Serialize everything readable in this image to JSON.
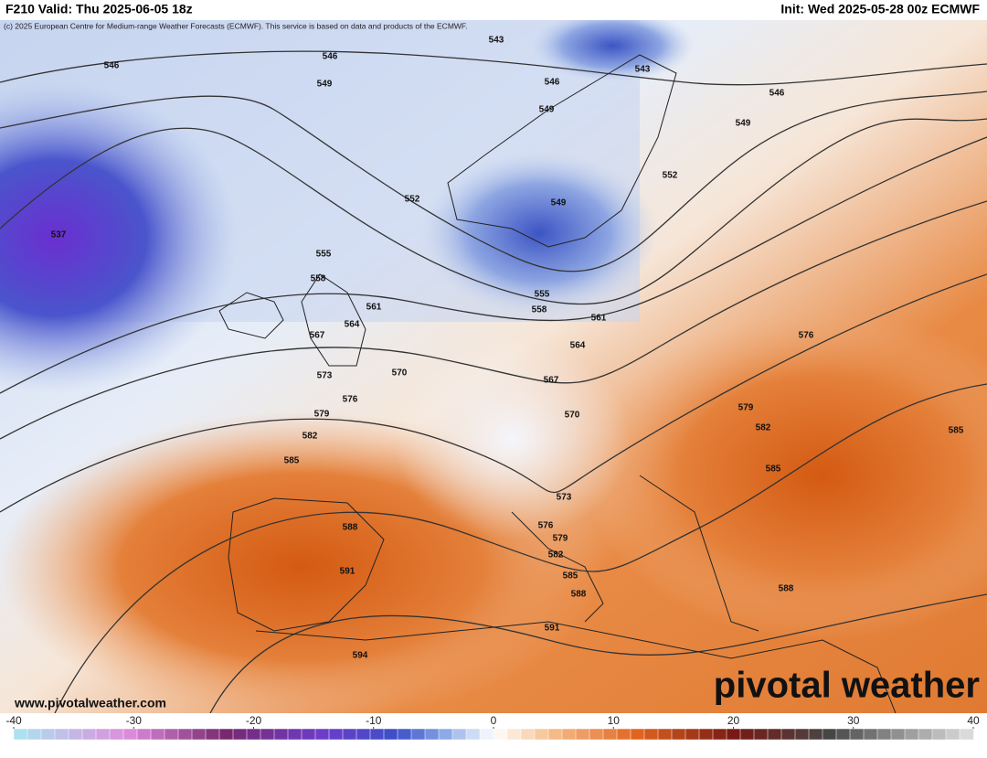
{
  "header": {
    "valid": "F210 Valid: Thu 2025-06-05 18z",
    "init": "Init: Wed 2025-05-28 00z ECMWF",
    "credit": "(c) 2025 European Centre for Medium-range Weather Forecasts (ECMWF). This service is based on data and products of the ECMWF."
  },
  "map": {
    "contour_labels": [
      543,
      546,
      546,
      549,
      543,
      546,
      549,
      546,
      549,
      552,
      552,
      549,
      537,
      555,
      558,
      555,
      558,
      561,
      564,
      561,
      567,
      564,
      576,
      570,
      573,
      567,
      576,
      579,
      579,
      570,
      582,
      582,
      585,
      585,
      585,
      573,
      588,
      576,
      579,
      582,
      591,
      585,
      588,
      588,
      591,
      594
    ]
  },
  "footer": {
    "website": "www.pivotalweather.com",
    "logo": "pivotal weather"
  },
  "colorbar": {
    "range": [
      -40,
      40
    ],
    "ticks": [
      -40,
      -30,
      -20,
      -10,
      0,
      10,
      20,
      30,
      40
    ]
  }
}
